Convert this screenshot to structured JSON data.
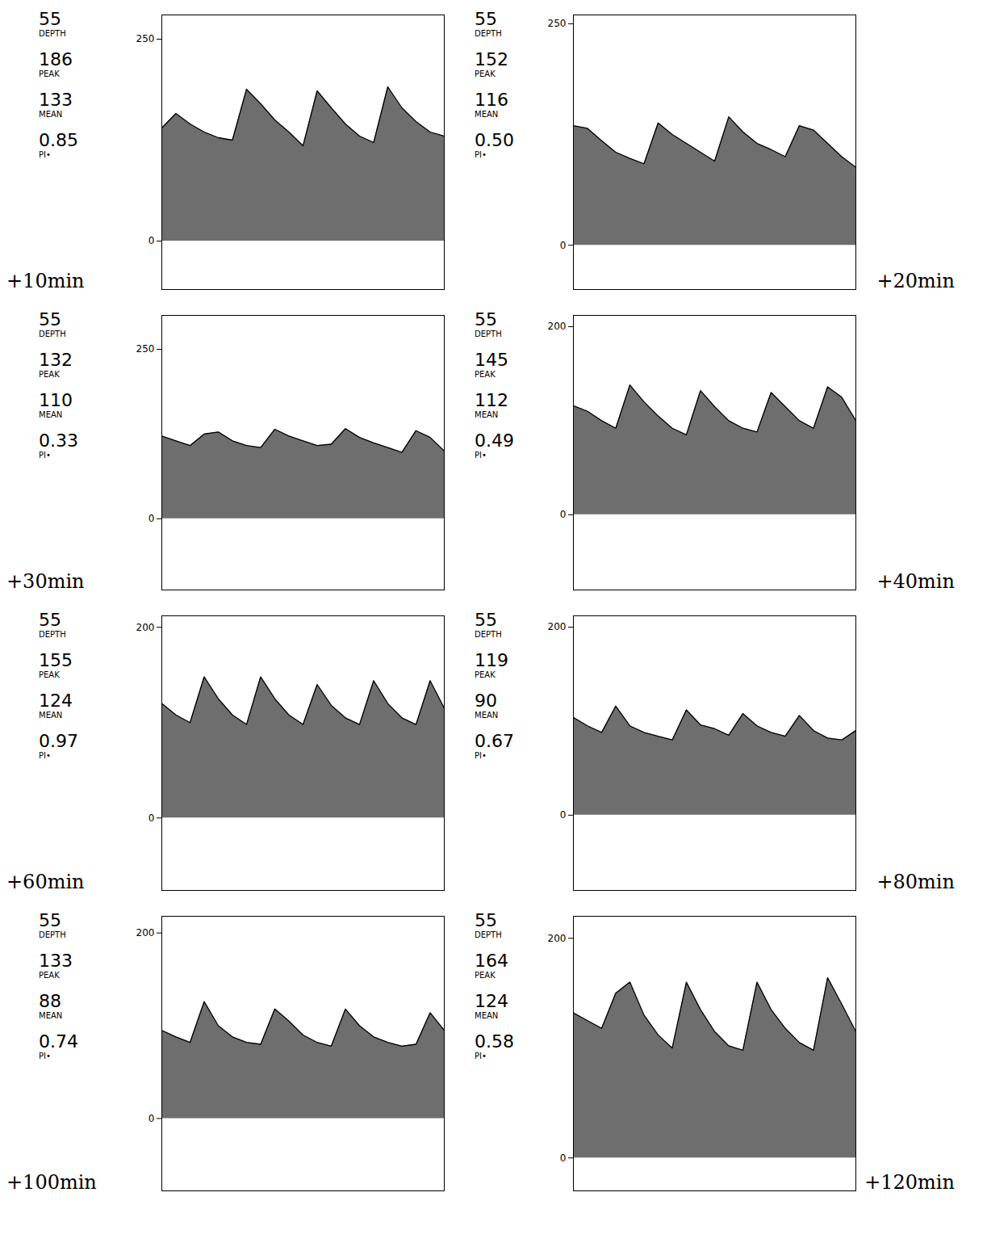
{
  "chart_data": [
    {
      "type": "area",
      "title": "+10min",
      "color": "#6e6e6e",
      "tick_labels": "y",
      "stats": [
        {
          "name": "DEPTH",
          "value": 55
        },
        {
          "name": "PEAK",
          "value": 186
        },
        {
          "name": "MEAN",
          "value": 133
        },
        {
          "name": "PI•",
          "value": 0.85
        }
      ],
      "x": [
        0,
        0.2,
        0.4,
        0.6,
        0.8,
        1,
        1.2,
        1.4,
        1.6,
        1.8,
        2,
        2.2,
        2.4,
        2.6,
        2.8,
        3,
        3.2,
        3.4,
        3.6,
        3.8,
        4
      ],
      "values": [
        140,
        158,
        145,
        135,
        128,
        125,
        188,
        170,
        150,
        135,
        118,
        186,
        165,
        145,
        130,
        122,
        191,
        165,
        148,
        135,
        130
      ],
      "xlim": [
        0,
        4
      ],
      "ylim": [
        -60,
        280
      ],
      "yticks": [
        0,
        250
      ]
    },
    {
      "type": "area",
      "title": "+20min",
      "color": "#6e6e6e",
      "tick_labels": "y",
      "stats": [
        {
          "name": "DEPTH",
          "value": 55
        },
        {
          "name": "PEAK",
          "value": 152
        },
        {
          "name": "MEAN",
          "value": 116
        },
        {
          "name": "PI•",
          "value": 0.5,
          "label": "0.50"
        }
      ],
      "x": [
        0,
        0.2,
        0.4,
        0.6,
        0.8,
        1,
        1.2,
        1.4,
        1.6,
        1.8,
        2,
        2.2,
        2.4,
        2.6,
        2.8,
        3,
        3.2,
        3.4,
        3.6,
        3.8,
        4
      ],
      "values": [
        135,
        132,
        118,
        105,
        98,
        92,
        138,
        125,
        115,
        105,
        95,
        145,
        128,
        115,
        108,
        100,
        135,
        130,
        115,
        100,
        88
      ],
      "xlim": [
        0,
        4
      ],
      "ylim": [
        -50,
        260
      ],
      "yticks": [
        0,
        250
      ]
    },
    {
      "type": "area",
      "title": "+30min",
      "color": "#6e6e6e",
      "tick_labels": "y",
      "stats": [
        {
          "name": "DEPTH",
          "value": 55
        },
        {
          "name": "PEAK",
          "value": 132
        },
        {
          "name": "MEAN",
          "value": 110
        },
        {
          "name": "PI•",
          "value": 0.33
        }
      ],
      "x": [
        0,
        0.2,
        0.4,
        0.6,
        0.8,
        1,
        1.2,
        1.4,
        1.6,
        1.8,
        2,
        2.2,
        2.4,
        2.6,
        2.8,
        3,
        3.2,
        3.4,
        3.6,
        3.8,
        4
      ],
      "values": [
        122,
        115,
        108,
        125,
        128,
        115,
        108,
        105,
        132,
        122,
        115,
        108,
        110,
        133,
        120,
        112,
        105,
        98,
        130,
        120,
        100
      ],
      "xlim": [
        0,
        4
      ],
      "ylim": [
        -105,
        300
      ],
      "yticks": [
        0,
        250
      ]
    },
    {
      "type": "area",
      "title": "+40min",
      "color": "#6e6e6e",
      "tick_labels": "y",
      "stats": [
        {
          "name": "DEPTH",
          "value": 55
        },
        {
          "name": "PEAK",
          "value": 145
        },
        {
          "name": "MEAN",
          "value": 112
        },
        {
          "name": "PI•",
          "value": 0.49
        }
      ],
      "x": [
        0,
        0.2,
        0.4,
        0.6,
        0.8,
        1,
        1.2,
        1.4,
        1.6,
        1.8,
        2,
        2.2,
        2.4,
        2.6,
        2.8,
        3,
        3.2,
        3.4,
        3.6,
        3.8,
        4
      ],
      "values": [
        116,
        110,
        100,
        92,
        138,
        120,
        105,
        92,
        85,
        132,
        115,
        100,
        92,
        88,
        130,
        115,
        100,
        92,
        136,
        125,
        100
      ],
      "xlim": [
        0,
        4
      ],
      "ylim": [
        -80,
        212
      ],
      "yticks": [
        0,
        200
      ]
    },
    {
      "type": "area",
      "title": "+60min",
      "color": "#6e6e6e",
      "tick_labels": "y",
      "stats": [
        {
          "name": "DEPTH",
          "value": 55
        },
        {
          "name": "PEAK",
          "value": 155
        },
        {
          "name": "MEAN",
          "value": 124
        },
        {
          "name": "PI•",
          "value": 0.97
        }
      ],
      "x": [
        0,
        0.2,
        0.4,
        0.6,
        0.8,
        1,
        1.2,
        1.4,
        1.6,
        1.8,
        2,
        2.2,
        2.4,
        2.6,
        2.8,
        3,
        3.2,
        3.4,
        3.6,
        3.8,
        4
      ],
      "values": [
        120,
        108,
        100,
        148,
        125,
        108,
        98,
        148,
        125,
        108,
        98,
        140,
        118,
        105,
        98,
        144,
        120,
        105,
        98,
        144,
        115
      ],
      "xlim": [
        0,
        4
      ],
      "ylim": [
        -76,
        212
      ],
      "yticks": [
        0,
        200
      ]
    },
    {
      "type": "area",
      "title": "+80min",
      "color": "#6e6e6e",
      "tick_labels": "y",
      "stats": [
        {
          "name": "DEPTH",
          "value": 55
        },
        {
          "name": "PEAK",
          "value": 119
        },
        {
          "name": "MEAN",
          "value": 90
        },
        {
          "name": "PI•",
          "value": 0.67
        }
      ],
      "x": [
        0,
        0.2,
        0.4,
        0.6,
        0.8,
        1,
        1.2,
        1.4,
        1.6,
        1.8,
        2,
        2.2,
        2.4,
        2.6,
        2.8,
        3,
        3.2,
        3.4,
        3.6,
        3.8,
        4
      ],
      "values": [
        104,
        95,
        88,
        116,
        95,
        88,
        84,
        80,
        112,
        96,
        92,
        85,
        108,
        95,
        88,
        84,
        106,
        90,
        82,
        80,
        90
      ],
      "xlim": [
        0,
        4
      ],
      "ylim": [
        -80,
        212
      ],
      "yticks": [
        0,
        200
      ]
    },
    {
      "type": "area",
      "title": "+100min",
      "color": "#6e6e6e",
      "tick_labels": "y",
      "stats": [
        {
          "name": "DEPTH",
          "value": 55
        },
        {
          "name": "PEAK",
          "value": 133
        },
        {
          "name": "MEAN",
          "value": 88
        },
        {
          "name": "PI•",
          "value": 0.74
        }
      ],
      "x": [
        0,
        0.2,
        0.4,
        0.6,
        0.8,
        1,
        1.2,
        1.4,
        1.6,
        1.8,
        2,
        2.2,
        2.4,
        2.6,
        2.8,
        3,
        3.2,
        3.4,
        3.6,
        3.8,
        4
      ],
      "values": [
        95,
        88,
        82,
        126,
        100,
        88,
        82,
        80,
        118,
        105,
        90,
        82,
        78,
        118,
        100,
        88,
        82,
        78,
        80,
        114,
        95
      ],
      "xlim": [
        0,
        4
      ],
      "ylim": [
        -78,
        218
      ],
      "yticks": [
        0,
        200
      ]
    },
    {
      "type": "area",
      "title": "+120min",
      "color": "#6e6e6e",
      "tick_labels": "y",
      "stats": [
        {
          "name": "DEPTH",
          "value": 55
        },
        {
          "name": "PEAK",
          "value": 164
        },
        {
          "name": "MEAN",
          "value": 124
        },
        {
          "name": "PI•",
          "value": 0.58
        }
      ],
      "x": [
        0,
        0.2,
        0.4,
        0.6,
        0.8,
        1,
        1.2,
        1.4,
        1.6,
        1.8,
        2,
        2.2,
        2.4,
        2.6,
        2.8,
        3,
        3.2,
        3.4,
        3.6,
        3.8,
        4
      ],
      "values": [
        132,
        125,
        118,
        150,
        160,
        130,
        112,
        100,
        160,
        135,
        115,
        102,
        98,
        160,
        135,
        118,
        105,
        98,
        164,
        140,
        115
      ],
      "xlim": [
        0,
        4
      ],
      "ylim": [
        -30,
        220
      ],
      "yticks": [
        0,
        200
      ]
    }
  ]
}
